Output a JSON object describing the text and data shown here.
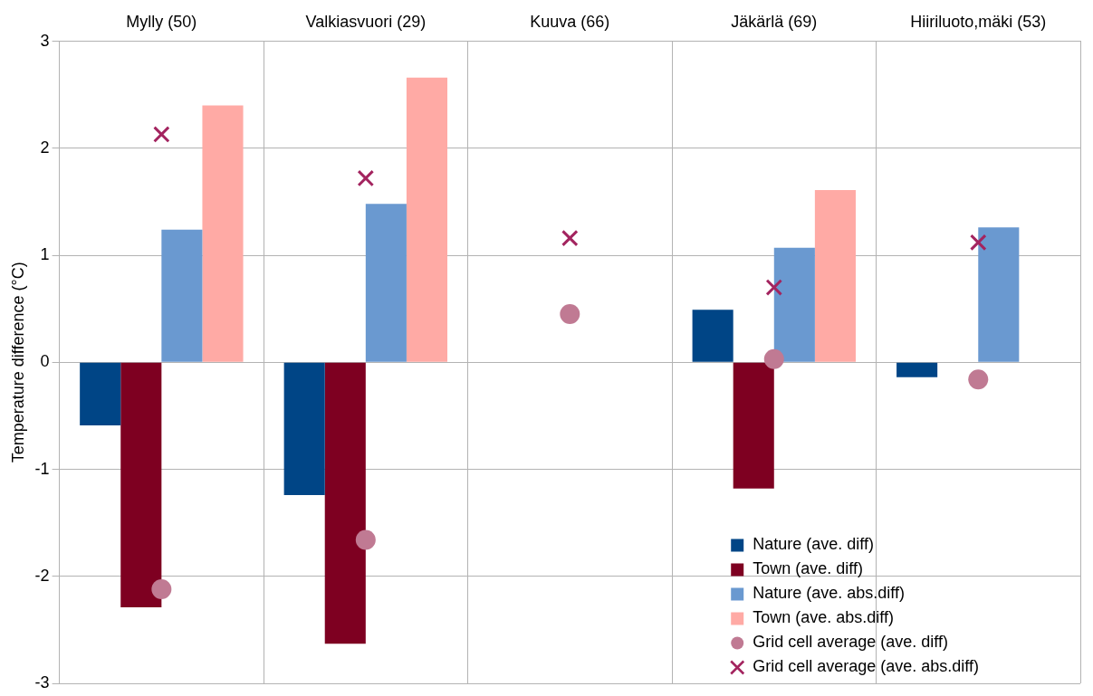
{
  "chart_data": {
    "type": "bar",
    "ylabel": "Temperature difference (°C)",
    "categories": [
      "Mylly (50)",
      "Valkiasvuori (29)",
      "Kuuva (66)",
      "Jäkärlä (69)",
      "Hiiriluoto,mäki (53)"
    ],
    "series": [
      {
        "name": "Nature (ave. diff)",
        "color": "#004586",
        "values": [
          -0.59,
          -1.24,
          null,
          0.49,
          -0.14
        ]
      },
      {
        "name": "Town (ave. diff)",
        "color": "#7e0021",
        "values": [
          -2.29,
          -2.63,
          null,
          -1.18,
          null
        ]
      },
      {
        "name": "Nature (ave. abs.diff)",
        "color": "#6a99d0",
        "values": [
          1.24,
          1.48,
          null,
          1.07,
          1.26
        ]
      },
      {
        "name": "Town (ave. abs.diff)",
        "color": "#ffaaa5",
        "values": [
          2.4,
          2.66,
          null,
          1.61,
          null
        ]
      },
      {
        "name": "Grid cell average (ave. diff)",
        "type": "scatter",
        "marker": "circle",
        "color": "#c07a93",
        "x": [
          "Mylly (50)",
          "Valkiasvuori (29)",
          "Kuuva (66)",
          "Jäkärlä (69)",
          "Hiiriluoto,mäki (53)"
        ],
        "values": [
          -2.12,
          -1.66,
          0.45,
          0.03,
          -0.16
        ]
      },
      {
        "name": "Grid cell average (ave. abs.diff)",
        "type": "scatter",
        "marker": "cross",
        "color": "#a3245f",
        "x": [
          "Mylly (50)",
          "Valkiasvuori (29)",
          "Kuuva (66)",
          "Jäkärlä (69)",
          "Hiiriluoto,mäki (53)"
        ],
        "values": [
          2.13,
          1.72,
          1.16,
          0.7,
          1.12
        ]
      }
    ],
    "ylim": [
      -3,
      3
    ],
    "yticks": [
      -3,
      -2,
      -1,
      0,
      1,
      2,
      3
    ],
    "grid": true,
    "legend": "bottom right"
  }
}
